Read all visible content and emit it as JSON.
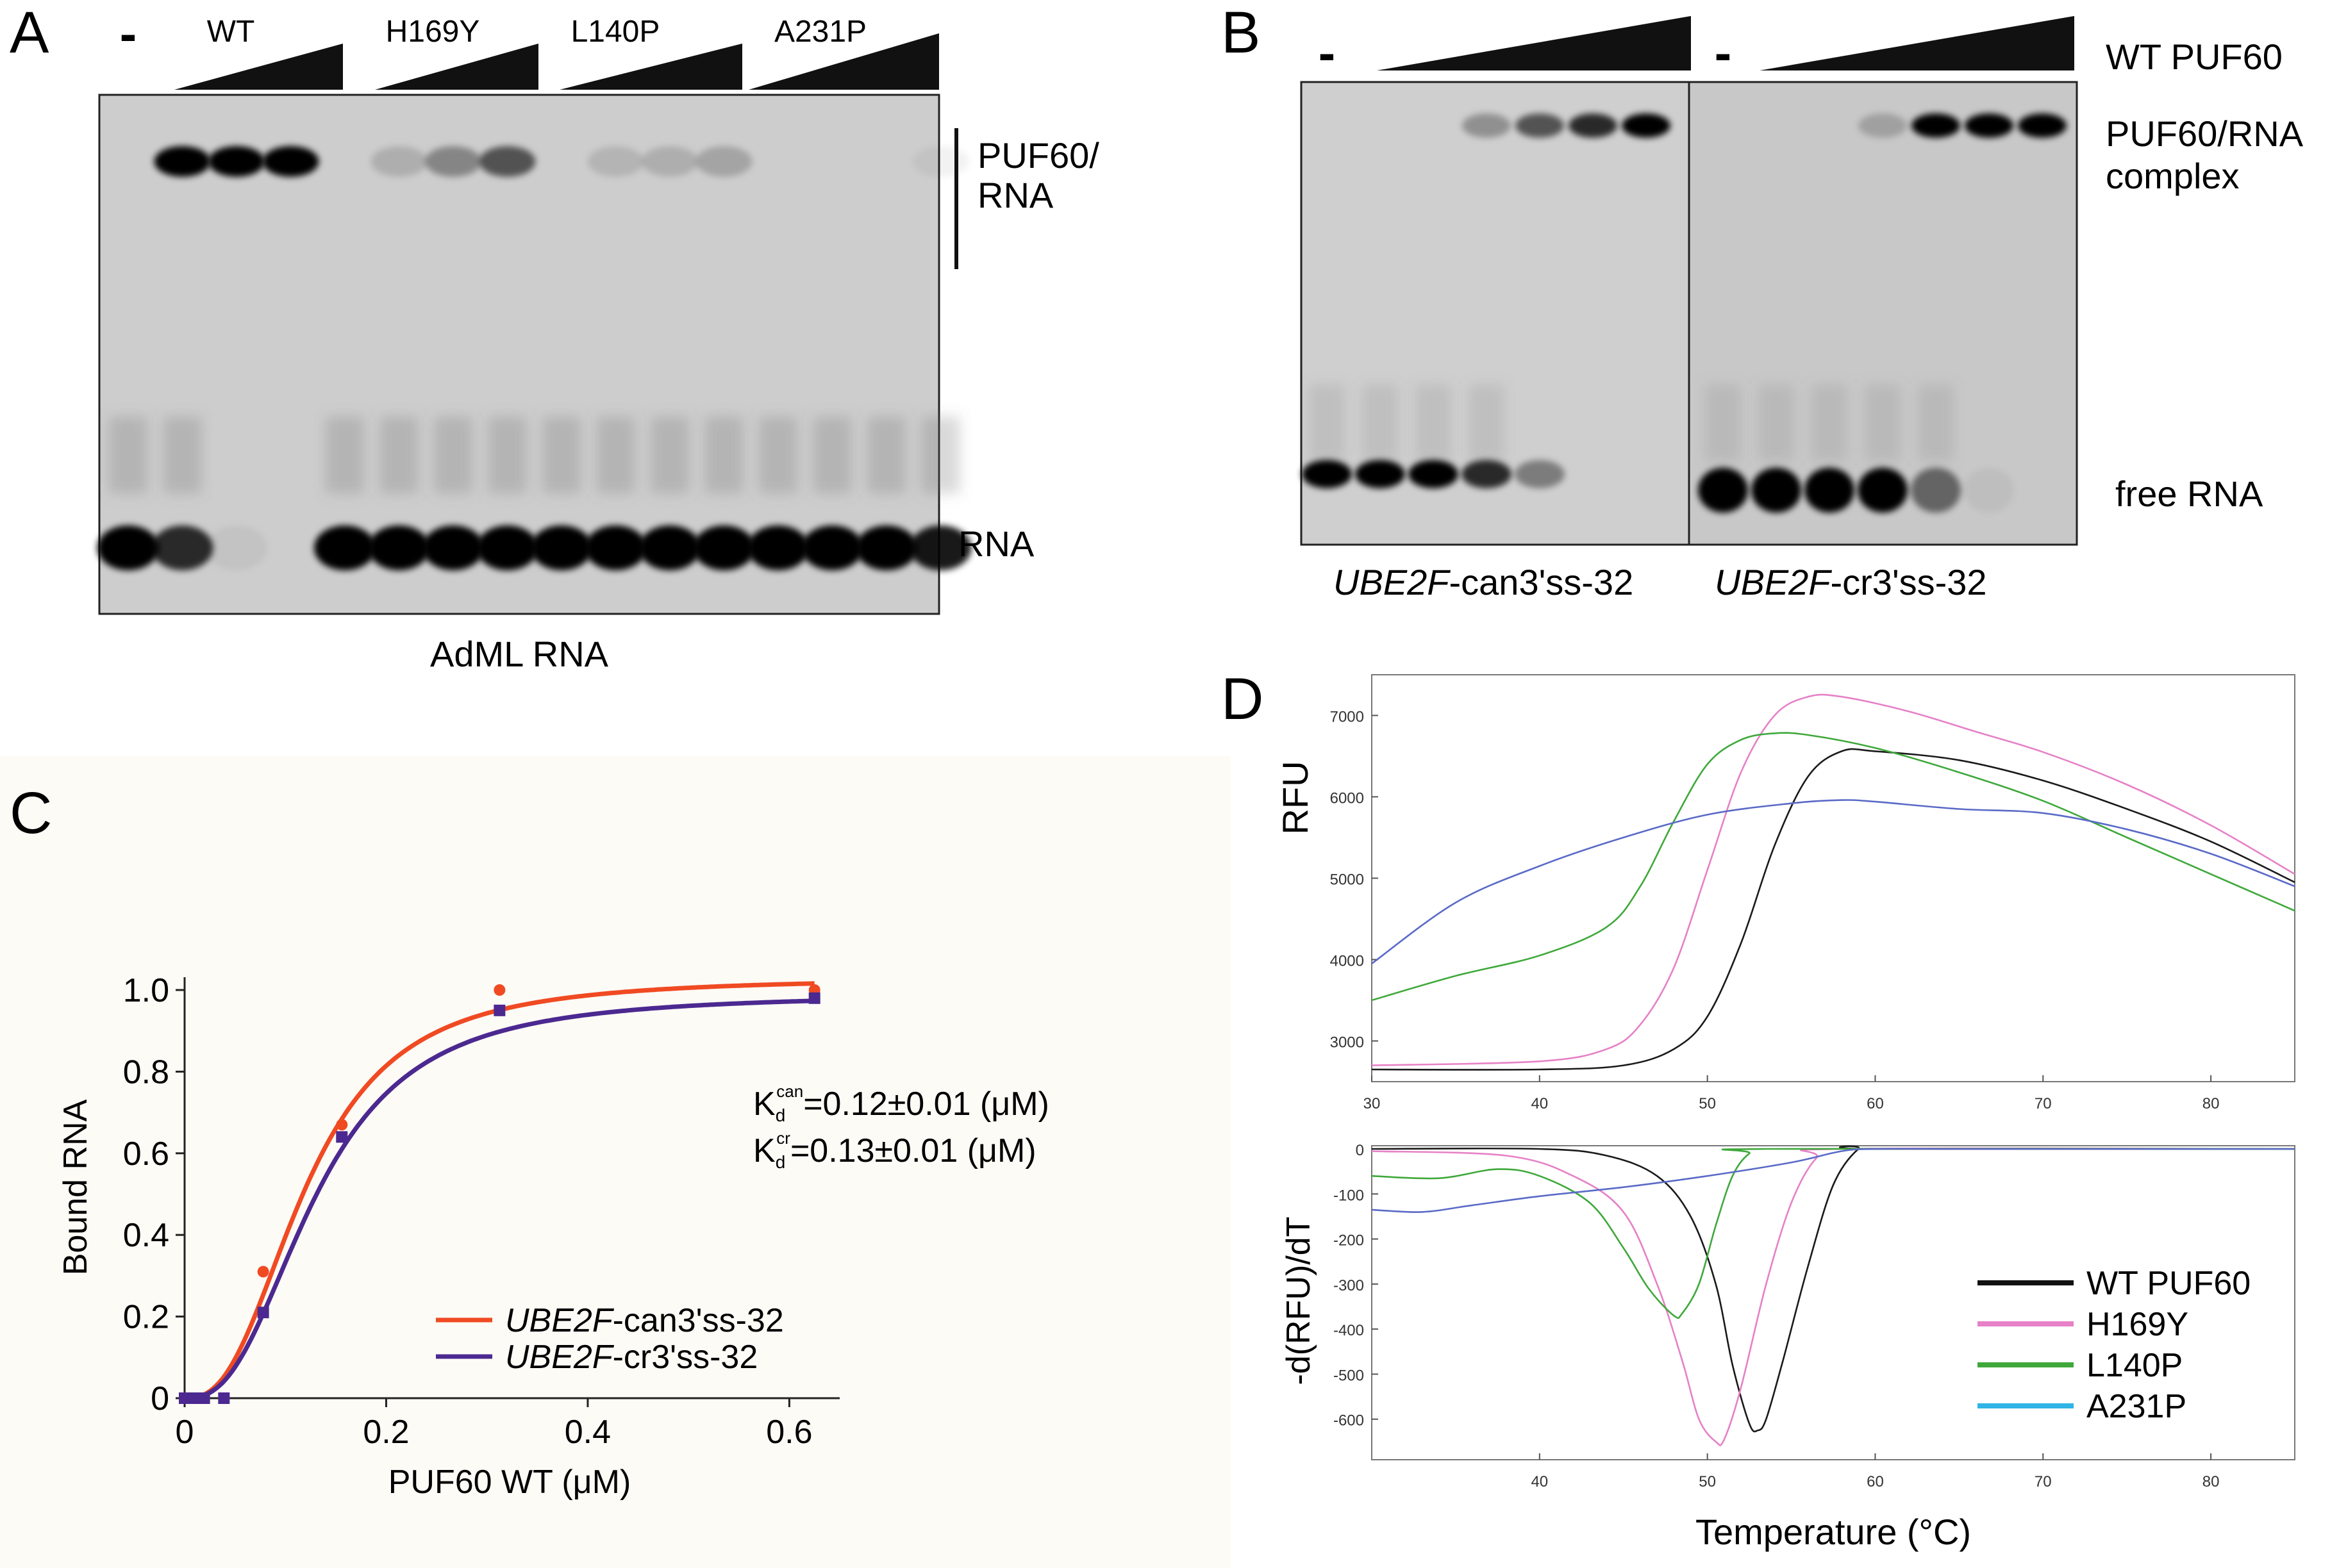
{
  "panels": {
    "A": {
      "letter": "A",
      "neg_control": "-",
      "groups": [
        "WT",
        "H169Y",
        "L140P",
        "A231P"
      ],
      "labels": {
        "complex": "PUF60/\nRNA",
        "free": "RNA"
      },
      "caption": "AdML RNA",
      "band_intensity": {
        "complex": [
          0,
          1,
          1,
          1,
          0,
          0.15,
          0.35,
          0.6,
          0,
          0.12,
          0.15,
          0.2,
          0,
          0,
          0,
          0.05
        ],
        "free": [
          1,
          0.8,
          0.05,
          0,
          1,
          1,
          1,
          1,
          1,
          1,
          1,
          1,
          1,
          1,
          1,
          0.9
        ]
      }
    },
    "B": {
      "letter": "B",
      "neg_control": "-",
      "protein_label": "WT PUF60",
      "labels": {
        "complex": "PUF60/RNA\ncomplex",
        "free": "free RNA"
      },
      "captions": [
        {
          "italic": "UBE2F",
          "rest": "-can3'ss-32"
        },
        {
          "italic": "UBE2F",
          "rest": "-cr3'ss-32"
        }
      ],
      "band_intensity": {
        "can": {
          "complex": [
            0,
            0,
            0,
            0.3,
            0.6,
            0.8,
            1
          ],
          "free": [
            1,
            1,
            1,
            0.8,
            0.4,
            0,
            0
          ]
        },
        "cr": {
          "complex": [
            0,
            0,
            0,
            0.2,
            1,
            1,
            1
          ],
          "free": [
            1,
            1,
            1,
            1,
            0.5,
            0.05,
            0
          ]
        }
      }
    },
    "C": {
      "letter": "C"
    },
    "D": {
      "letter": "D"
    }
  },
  "chart_data": [
    {
      "panel": "C",
      "type": "scatter",
      "xlabel": "PUF60 WT (μM)",
      "ylabel": "Bound RNA",
      "xlim": [
        0,
        0.65
      ],
      "ylim": [
        0,
        1.0
      ],
      "xticks": [
        0,
        0.2,
        0.4,
        0.6
      ],
      "xtick_labels": [
        "0",
        "0.2",
        "0.4",
        "0.6"
      ],
      "yticks": [
        0,
        0.2,
        0.4,
        0.6,
        0.8,
        1.0
      ],
      "ytick_labels": [
        "0",
        "0.2",
        "0.4",
        "0.6",
        "0.8",
        "1.0"
      ],
      "annotations": [
        {
          "base": "K",
          "sub": "d",
          "sup": "can",
          "text": "=0.12±0.01 (μM)"
        },
        {
          "base": "K",
          "sub": "d",
          "sup": "cr",
          "text": "=0.13±0.01 (μM)"
        }
      ],
      "series": [
        {
          "name_italic": "UBE2F",
          "name_rest": "-can3'ss-32",
          "color": "#f04a23",
          "marker": "circle",
          "kd": 0.12,
          "bmax": 1.03,
          "hill": 2.6,
          "x": [
            0,
            0.0098,
            0.0195,
            0.039,
            0.078,
            0.156,
            0.3125,
            0.625
          ],
          "y": [
            0,
            0,
            0,
            0,
            0.31,
            0.67,
            1.0,
            1.0
          ]
        },
        {
          "name_italic": "UBE2F",
          "name_rest": "-cr3'ss-32",
          "color": "#4b2990",
          "marker": "square",
          "kd": 0.13,
          "bmax": 0.99,
          "hill": 2.6,
          "x": [
            0,
            0.0098,
            0.0195,
            0.039,
            0.078,
            0.156,
            0.3125,
            0.625
          ],
          "y": [
            0,
            0,
            0,
            0,
            0.21,
            0.64,
            0.95,
            0.98
          ]
        }
      ]
    },
    {
      "panel": "D-top",
      "type": "line",
      "xlabel": "",
      "ylabel": "RFU",
      "xlim": [
        30,
        85
      ],
      "ylim": [
        2500,
        7500
      ],
      "xticks": [
        30,
        40,
        50,
        60,
        70,
        80
      ],
      "yticks": [
        3000,
        4000,
        5000,
        6000,
        7000
      ],
      "series": [
        {
          "name": "WT PUF60",
          "color": "#1a1a1a",
          "x": [
            30,
            40,
            45,
            48,
            50,
            52,
            54,
            56,
            58,
            60,
            65,
            70,
            75,
            80,
            85
          ],
          "y": [
            2650,
            2650,
            2700,
            2900,
            3300,
            4200,
            5400,
            6250,
            6560,
            6560,
            6450,
            6200,
            5850,
            5450,
            4950
          ]
        },
        {
          "name": "H169Y",
          "color": "#e681c7",
          "x": [
            30,
            40,
            44,
            46,
            48,
            50,
            52,
            54,
            56,
            58,
            62,
            66,
            70,
            75,
            80,
            85
          ],
          "y": [
            2700,
            2750,
            2900,
            3200,
            3900,
            5100,
            6300,
            7000,
            7230,
            7230,
            7050,
            6800,
            6550,
            6150,
            5650,
            5050
          ]
        },
        {
          "name": "L140P",
          "color": "#3fa83b",
          "x": [
            30,
            35,
            40,
            44,
            46,
            48,
            50,
            52,
            54,
            56,
            60,
            65,
            70,
            75,
            80,
            85
          ],
          "y": [
            3500,
            3800,
            4050,
            4400,
            4900,
            5700,
            6400,
            6700,
            6780,
            6760,
            6600,
            6300,
            5950,
            5500,
            5050,
            4600
          ]
        },
        {
          "name": "A231P",
          "color": "#5a6ac7",
          "x": [
            30,
            35,
            40,
            45,
            50,
            55,
            58,
            60,
            65,
            70,
            75,
            80,
            85
          ],
          "y": [
            3950,
            4700,
            5150,
            5500,
            5780,
            5920,
            5960,
            5940,
            5850,
            5800,
            5600,
            5300,
            4900
          ]
        }
      ]
    },
    {
      "panel": "D-bottom",
      "type": "line",
      "xlabel": "Temperature (°C)",
      "ylabel": "-d(RFU)/dT",
      "xlim": [
        30,
        85
      ],
      "ylim": [
        -690,
        0
      ],
      "xticks": [
        40,
        50,
        60,
        70,
        80
      ],
      "yticks": [
        0,
        -100,
        -200,
        -300,
        -400,
        -500,
        -600
      ],
      "legend": {
        "position": "bottom-right",
        "entries": [
          "WT PUF60",
          "H169Y",
          "L140P",
          "A231P"
        ],
        "colors": [
          "#111111",
          "#e681c7",
          "#3fa83b",
          "#30b4e6"
        ]
      },
      "series": [
        {
          "name": "WT PUF60",
          "color": "#1a1a1a",
          "x": [
            30,
            40,
            44,
            47,
            49,
            50.5,
            51.5,
            52.5,
            53,
            53.5,
            54.5,
            56,
            57.5,
            59,
            60,
            85
          ],
          "y": [
            0,
            0,
            -15,
            -60,
            -150,
            -300,
            -480,
            -610,
            -625,
            -600,
            -470,
            -260,
            -80,
            0,
            0,
            0
          ]
        },
        {
          "name": "H169Y",
          "color": "#e681c7",
          "x": [
            30,
            38,
            42,
            45,
            47,
            48.5,
            49.5,
            50.5,
            51,
            52,
            53.5,
            55,
            56.5,
            58,
            85
          ],
          "y": [
            -5,
            -15,
            -60,
            -140,
            -300,
            -470,
            -600,
            -650,
            -645,
            -530,
            -300,
            -120,
            -20,
            0,
            0
          ]
        },
        {
          "name": "L140P",
          "color": "#3fa83b",
          "x": [
            30,
            34,
            37.5,
            40,
            43,
            45,
            46.5,
            48,
            48.5,
            49.5,
            50.5,
            51.5,
            52.5,
            53.5,
            85
          ],
          "y": [
            -60,
            -65,
            -45,
            -60,
            -120,
            -220,
            -310,
            -370,
            -365,
            -300,
            -170,
            -60,
            -10,
            0,
            0
          ]
        },
        {
          "name": "A231P",
          "color": "#5a6ac7",
          "x": [
            30,
            33,
            36,
            40,
            45,
            50,
            55,
            58,
            60,
            65,
            70,
            85
          ],
          "y": [
            -135,
            -140,
            -125,
            -105,
            -85,
            -60,
            -30,
            -5,
            0,
            0,
            0,
            0
          ]
        }
      ]
    }
  ]
}
